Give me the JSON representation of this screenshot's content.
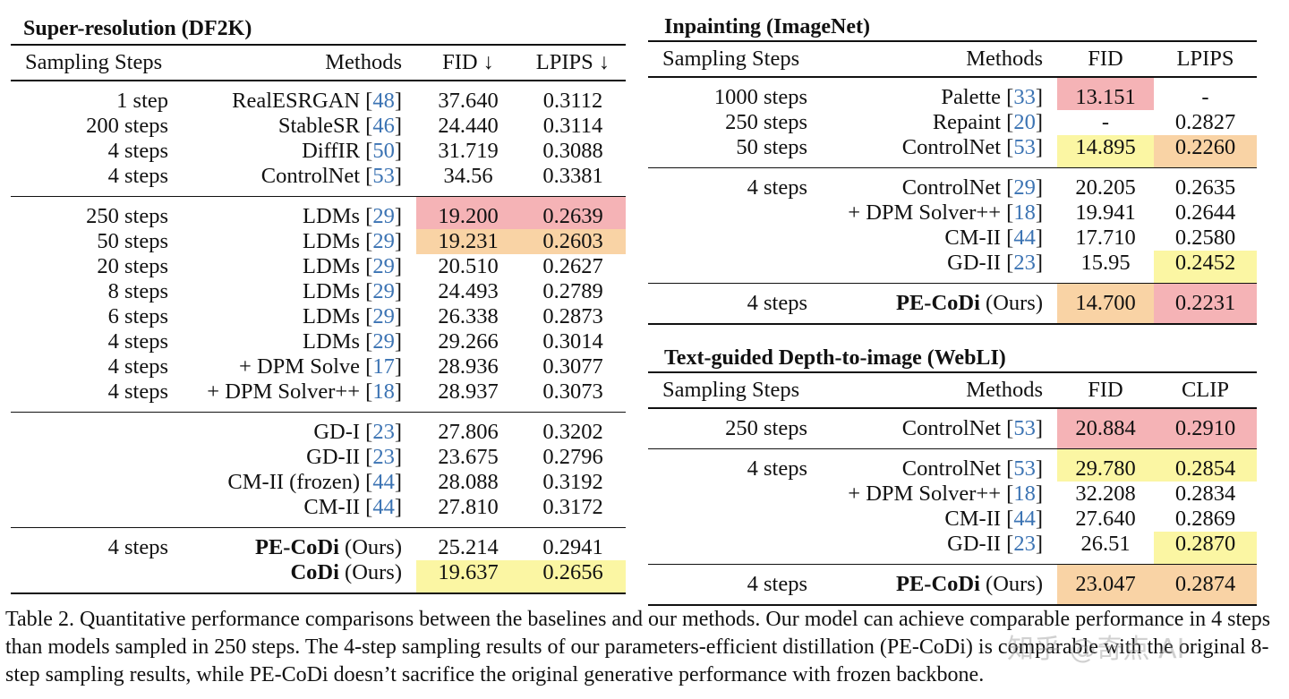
{
  "colors": {
    "pink": "#f5b3b6",
    "orange": "#f9d3a5",
    "yellow": "#fbf6a3",
    "ref": "#3b73b3"
  },
  "sr": {
    "title": "Super-resolution (DF2K)",
    "headers": [
      "Sampling Steps",
      "Methods",
      "FID ↓",
      "LPIPS ↓"
    ],
    "groups": [
      [
        {
          "steps": "1 step",
          "method": "RealESRGAN",
          "ref": "48",
          "fid": "37.640",
          "lpips": "0.3112"
        },
        {
          "steps": "200 steps",
          "method": "StableSR",
          "ref": "46",
          "fid": "24.440",
          "lpips": "0.3114"
        },
        {
          "steps": "4 steps",
          "method": "DiffIR",
          "ref": "50",
          "fid": "31.719",
          "lpips": "0.3088"
        },
        {
          "steps": "4 steps",
          "method": "ControlNet",
          "ref": "53",
          "fid": "34.56",
          "lpips": "0.3381"
        }
      ],
      [
        {
          "steps": "250 steps",
          "method": "LDMs",
          "ref": "29",
          "fid": "19.200",
          "lpips": "0.2639",
          "hl": "pink"
        },
        {
          "steps": "50 steps",
          "method": "LDMs",
          "ref": "29",
          "fid": "19.231",
          "lpips": "0.2603",
          "hl": "orange"
        },
        {
          "steps": "20 steps",
          "method": "LDMs",
          "ref": "29",
          "fid": "20.510",
          "lpips": "0.2627"
        },
        {
          "steps": "8 steps",
          "method": "LDMs",
          "ref": "29",
          "fid": "24.493",
          "lpips": "0.2789"
        },
        {
          "steps": "6 steps",
          "method": "LDMs",
          "ref": "29",
          "fid": "26.338",
          "lpips": "0.2873"
        },
        {
          "steps": "4 steps",
          "method": "LDMs",
          "ref": "29",
          "fid": "29.266",
          "lpips": "0.3014"
        },
        {
          "steps": "4 steps",
          "method": "+ DPM Solve",
          "ref": "17",
          "fid": "28.936",
          "lpips": "0.3077"
        },
        {
          "steps": "4 steps",
          "method": "+ DPM Solver++",
          "ref": "18",
          "fid": "28.937",
          "lpips": "0.3073"
        }
      ],
      [
        {
          "steps": "",
          "method": "GD-I",
          "ref": "23",
          "fid": "27.806",
          "lpips": "0.3202"
        },
        {
          "steps": "",
          "method": "GD-II",
          "ref": "23",
          "fid": "23.675",
          "lpips": "0.2796"
        },
        {
          "steps": "",
          "method": "CM-II (frozen) ",
          "ref": "44",
          "fid": "28.088",
          "lpips": "0.3192"
        },
        {
          "steps": "",
          "method": "CM-II ",
          "ref": "44",
          "fid": "27.810",
          "lpips": "0.3172"
        }
      ],
      [
        {
          "steps": "4 steps",
          "method": "PE-CoDi",
          "suffix": " (Ours)",
          "bold": true,
          "fid": "25.214",
          "lpips": "0.2941"
        },
        {
          "steps": "",
          "method": "CoDi",
          "suffix": " (Ours)",
          "bold": true,
          "fid": "19.637",
          "lpips": "0.2656",
          "hl": "yellow"
        }
      ]
    ]
  },
  "inp": {
    "title": "Inpainting (ImageNet)",
    "headers": [
      "Sampling Steps",
      "Methods",
      "FID",
      "LPIPS"
    ],
    "groups": [
      [
        {
          "steps": "1000 steps",
          "method": "Palette",
          "ref": "33",
          "fid": "13.151",
          "lpips": "-",
          "hl_fid": "pink"
        },
        {
          "steps": "250 steps",
          "method": "Repaint",
          "ref": "20",
          "fid": "-",
          "lpips": "0.2827"
        },
        {
          "steps": "50 steps",
          "method": "ControlNet",
          "ref": "53",
          "fid": "14.895",
          "lpips": "0.2260",
          "hl_fid": "yellow",
          "hl_lpips": "orange"
        }
      ],
      [
        {
          "steps": "4 steps",
          "method": "ControlNet",
          "ref": "29",
          "fid": "20.205",
          "lpips": "0.2635"
        },
        {
          "steps": "",
          "method": "+ DPM Solver++",
          "ref": "18",
          "fid": "19.941",
          "lpips": "0.2644"
        },
        {
          "steps": "",
          "method": "CM-II",
          "ref": "44",
          "fid": "17.710",
          "lpips": "0.2580"
        },
        {
          "steps": "",
          "method": "GD-II",
          "ref": "23",
          "fid": "15.95",
          "lpips": "0.2452",
          "hl_lpips": "yellow"
        }
      ],
      [
        {
          "steps": "4 steps",
          "method": "PE-CoDi",
          "suffix": " (Ours)",
          "bold": true,
          "fid": "14.700",
          "lpips": "0.2231",
          "hl_fid": "orange",
          "hl_lpips": "pink"
        }
      ]
    ]
  },
  "depth": {
    "title": "Text-guided Depth-to-image (WebLI)",
    "headers": [
      "Sampling Steps",
      "Methods",
      "FID",
      "CLIP"
    ],
    "groups": [
      [
        {
          "steps": "250 steps",
          "method": "ControlNet",
          "ref": "53",
          "fid": "20.884",
          "lpips": "0.2910",
          "hl": "pink"
        }
      ],
      [
        {
          "steps": "4 steps",
          "method": "ControlNet",
          "ref": "53",
          "fid": "29.780",
          "lpips": "0.2854",
          "hl": "yellow"
        },
        {
          "steps": "",
          "method": "+ DPM Solver++",
          "ref": "18",
          "fid": "32.208",
          "lpips": "0.2834"
        },
        {
          "steps": "",
          "method": "CM-II",
          "ref": "44",
          "fid": "27.640",
          "lpips": "0.2869"
        },
        {
          "steps": "",
          "method": "GD-II",
          "ref": "23",
          "fid": "26.51",
          "lpips": "0.2870",
          "hl_lpips": "yellow"
        }
      ],
      [
        {
          "steps": "4 steps",
          "method": "PE-CoDi",
          "suffix": " (Ours)",
          "bold": true,
          "fid": "23.047",
          "lpips": "0.2874",
          "hl": "orange"
        }
      ]
    ]
  },
  "caption": "Table 2. Quantitative performance comparisons between the baselines and our methods. Our model can achieve comparable performance in 4 steps than models sampled in 250 steps. The 4-step sampling results of our parameters-efficient distillation (PE-CoDi) is comparable with the original 8-step sampling results, while PE-CoDi doesn’t sacrifice the original generative performance with frozen backbone.",
  "watermark": "知乎 @奇点 AI"
}
